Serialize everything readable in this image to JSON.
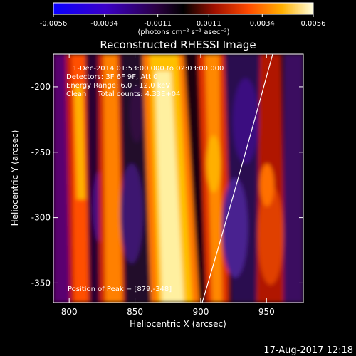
{
  "colorbar": {
    "ticks": [
      "-0.0056",
      "-0.0034",
      "-0.0011",
      "0.0011",
      "0.0034",
      "0.0056"
    ],
    "tick_values": [
      -0.0056,
      -0.0034,
      -0.0011,
      0.0011,
      0.0034,
      0.0056
    ],
    "units": "(photons cm⁻² s⁻¹ asec⁻²)"
  },
  "title": "Reconstructed RHESSI Image",
  "info_lines": [
    "1-Dec-2014 01:53:00.000 to 02:03:00.000",
    "Detectors: 3F 6F 9F, Att 0",
    "Energy Range: 6.0 - 12.0 keV",
    "Clean     Total counts: 4.33E+04"
  ],
  "peak_label": "Position of Peak = [879,-348]",
  "x_axis": {
    "label": "Heliocentric X (arcsec)",
    "ticks": [
      "800",
      "850",
      "900",
      "950"
    ],
    "range": [
      788,
      978
    ]
  },
  "y_axis": {
    "label": "Heliocentric Y (arcsec)",
    "ticks": [
      "-200",
      "-250",
      "-300",
      "-350"
    ],
    "range": [
      -365,
      -175
    ]
  },
  "timestamp": "17-Aug-2017 12:18",
  "colors": {
    "background": "#000000",
    "text": "#ffffff",
    "limb": "#ffffff"
  }
}
